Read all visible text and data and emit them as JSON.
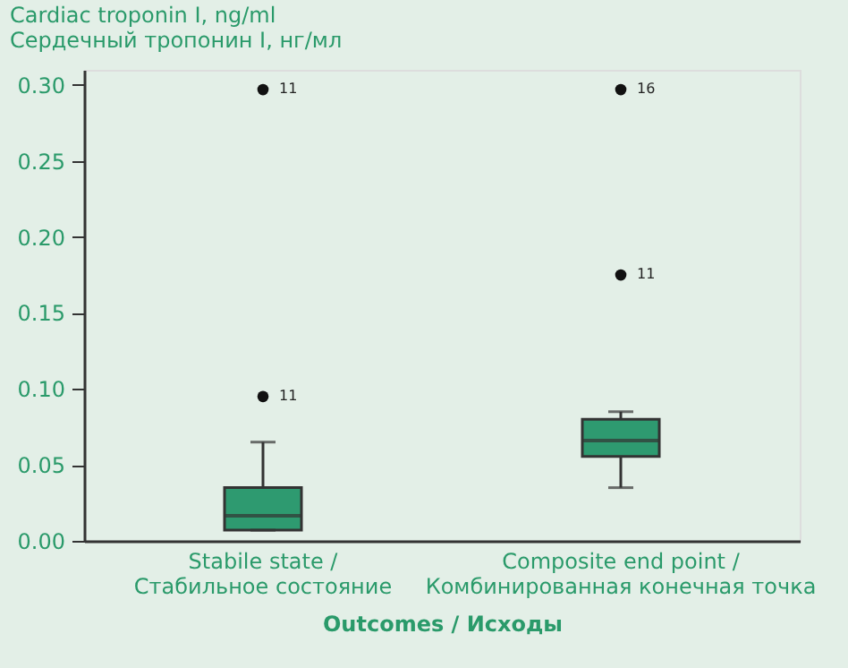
{
  "chart_data": {
    "type": "box",
    "xlabel": "Outcomes / Исходы",
    "ylabel": "Cardiac troponin I, ng/ml\nСердечный тропонин I, нг/мл",
    "categories": [
      "Stabile state /\nСтабильное состояние",
      "Composite end point /\nКомбинированная конечная точка"
    ],
    "series": [
      {
        "color": "#2e9a70",
        "boxes": [
          {
            "low": 0.007,
            "q1": 0.007,
            "median": 0.0165,
            "q3": 0.035,
            "high": 0.065
          },
          {
            "low": 0.035,
            "q1": 0.0555,
            "median": 0.066,
            "q3": 0.08,
            "high": 0.085
          }
        ]
      },
      {
        "type": "scatter",
        "color": "#111111",
        "x": [
          "Stabile state /\nСтабильное состояние",
          "Stabile state /\nСтабильное состояние",
          "Composite end point /\nКомбинированная конечная точка",
          "Composite end point /\nКомбинированная конечная точка"
        ],
        "values": [
          0.297,
          0.095,
          0.297,
          0.175
        ]
      }
    ],
    "ylim": [
      0,
      0.31
    ],
    "yticks": [
      {
        "value": 0,
        "label": "0.00"
      },
      {
        "value": 0.05,
        "label": "0.05"
      },
      {
        "value": 0.1,
        "label": "0.10"
      },
      {
        "value": 0.15,
        "label": "0.15"
      },
      {
        "value": 0.2,
        "label": "0.20"
      },
      {
        "value": 0.25,
        "label": "0.25"
      },
      {
        "value": 0.3,
        "label": "0.30"
      }
    ],
    "grid": false,
    "annotations": [
      {
        "text": "11",
        "x": "Stabile state /\nСтабильное состояние",
        "y": 0.297
      },
      {
        "text": "11",
        "x": "Stabile state /\nСтабильное состояние",
        "y": 0.095
      },
      {
        "text": "16",
        "x": "Composite end point /\nКомбинированная конечная точка",
        "y": 0.297
      },
      {
        "text": "11",
        "x": "Composite end point /\nКомбинированная конечная точка",
        "y": 0.175
      }
    ]
  }
}
